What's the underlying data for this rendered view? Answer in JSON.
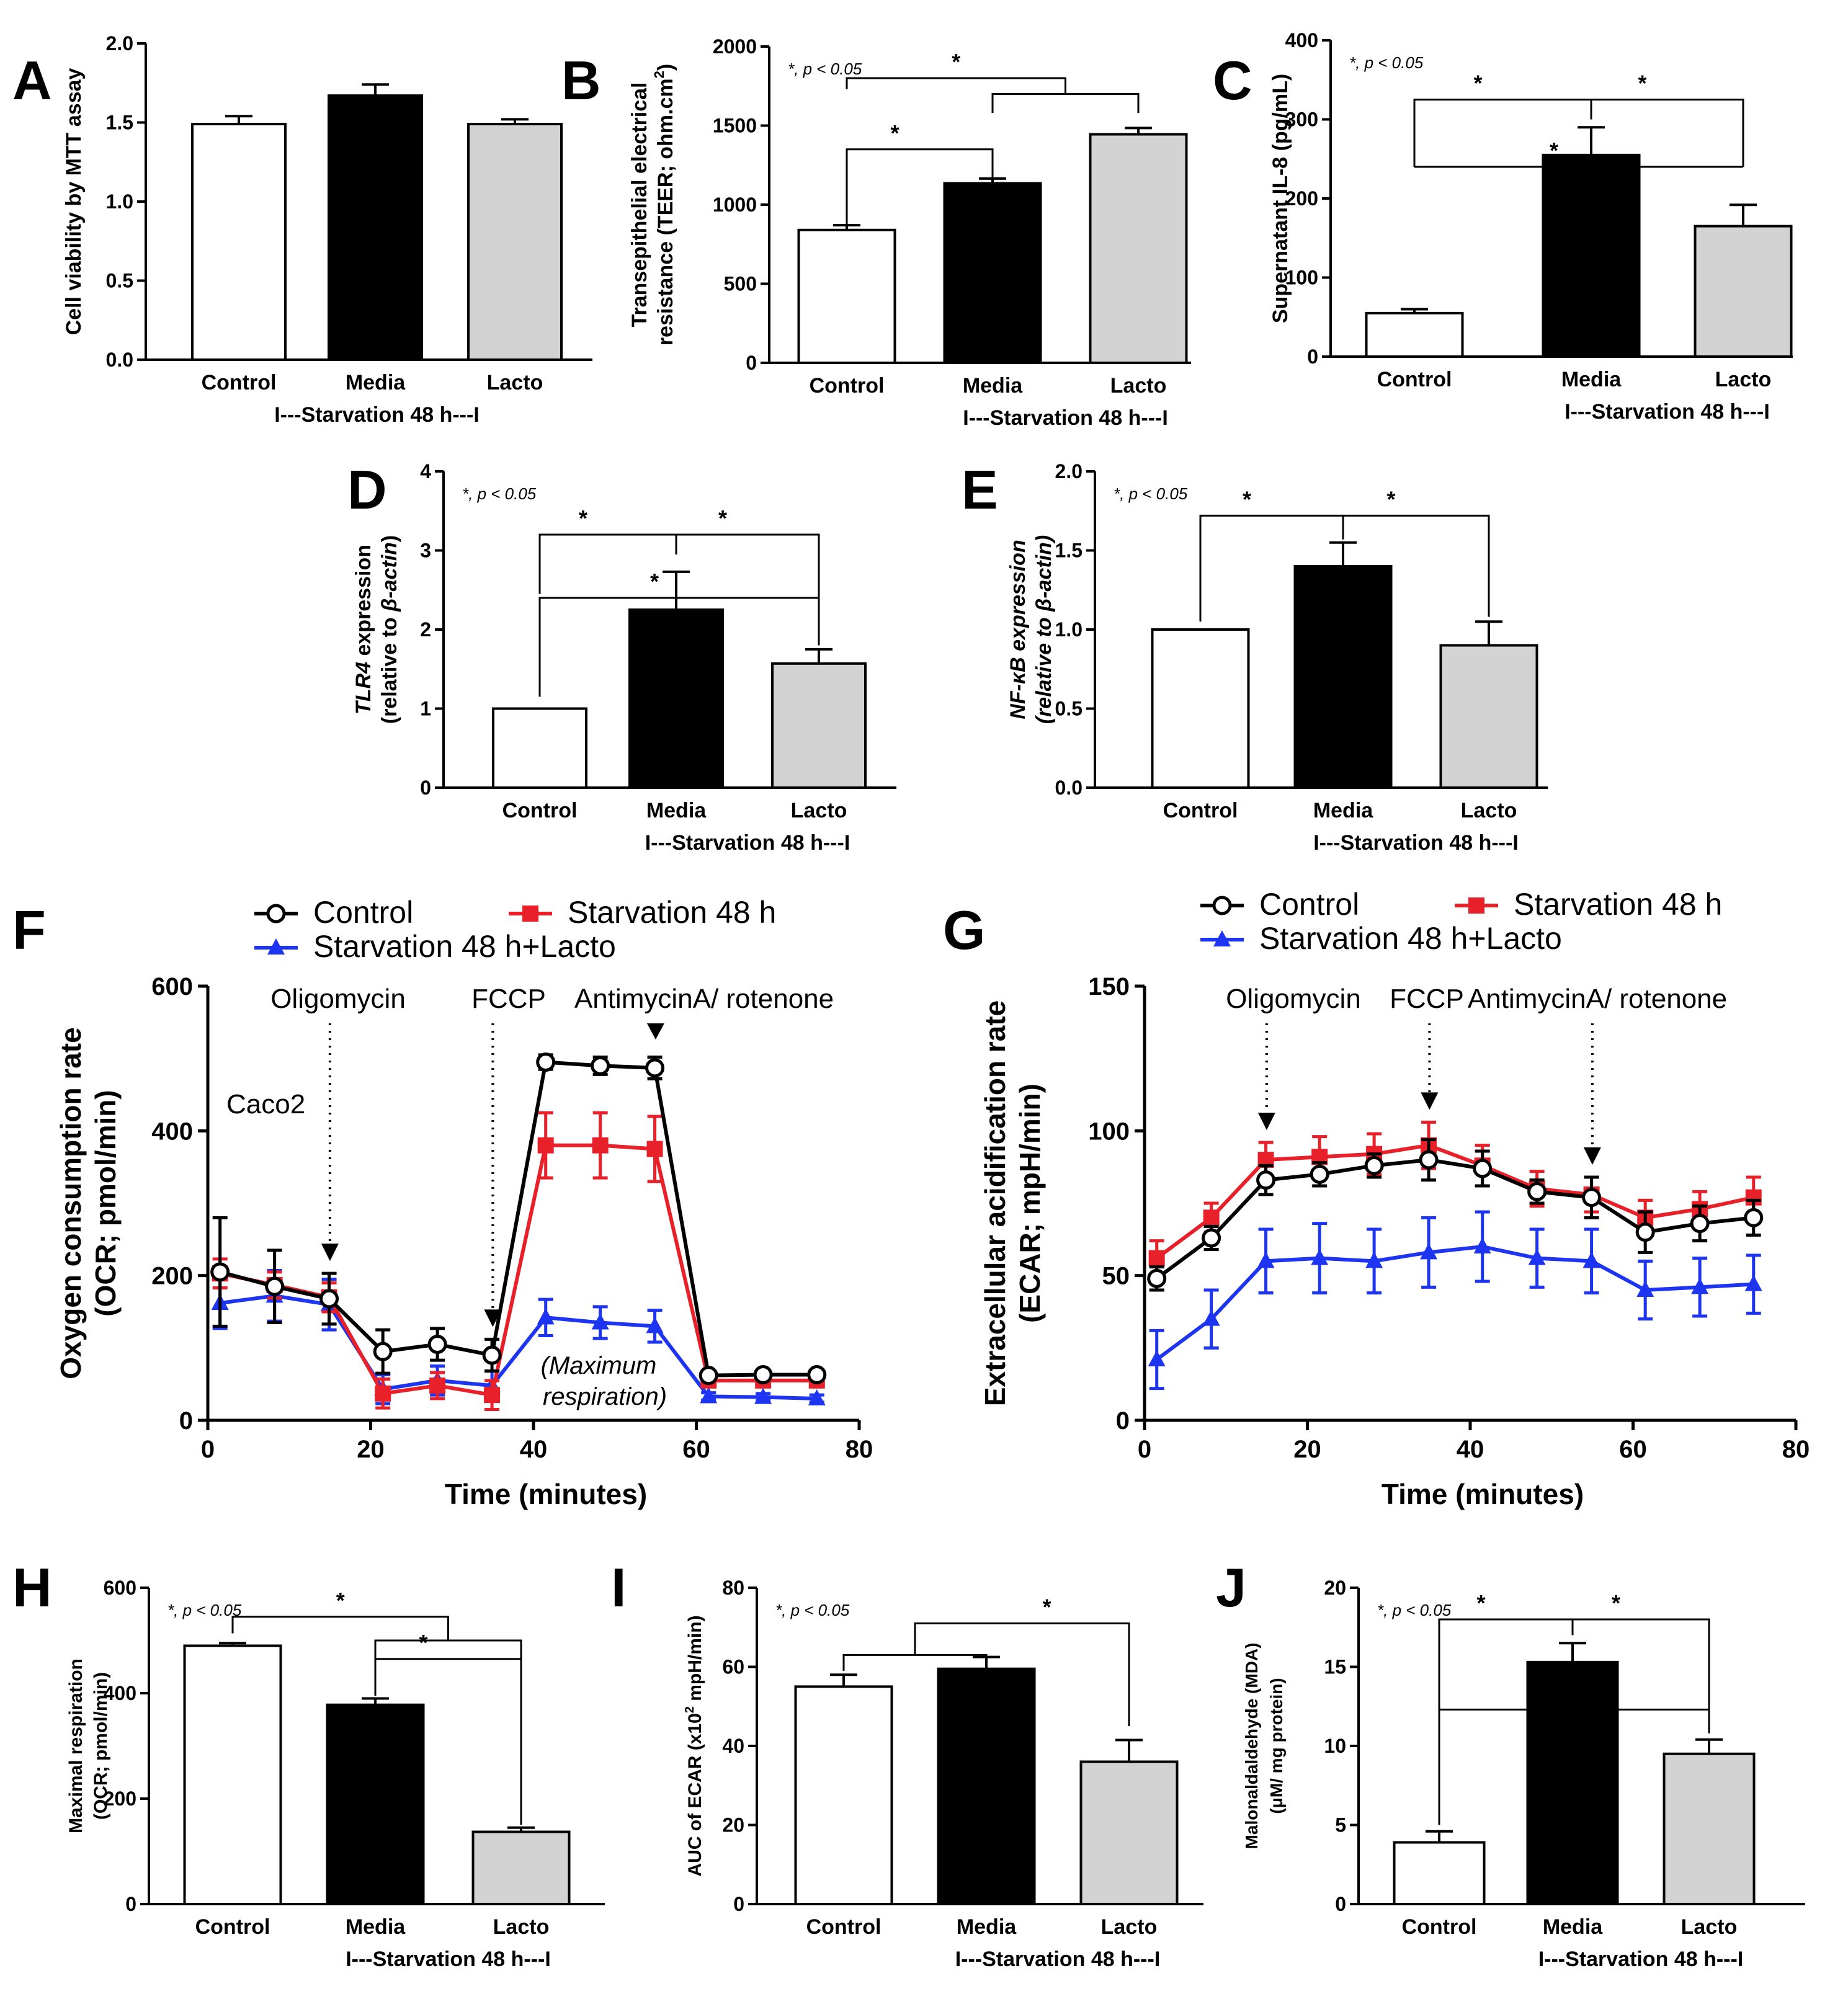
{
  "chart_data": [
    {
      "panel": "A",
      "type": "bar",
      "ylabel": "Cell viability by MTT assay",
      "categories": [
        "Control",
        "Media",
        "Lacto"
      ],
      "values": [
        1.49,
        1.67,
        1.49
      ],
      "errors": [
        0.05,
        0.07,
        0.03
      ],
      "colors": [
        "#ffffff",
        "#000000",
        "#d3d3d3"
      ],
      "ylim": [
        0,
        2.0
      ],
      "yticks": [
        "0.0",
        "0.5",
        "1.0",
        "1.5",
        "2.0"
      ],
      "group_label": "I---Starvation 48 h---I",
      "sig_note": "",
      "brackets": []
    },
    {
      "panel": "B",
      "type": "bar",
      "ylabel": "Transepithelial electrical resistance (TEER; ohm.cm²)",
      "ylabel_lines": [
        "Transepithelial electrical",
        "resistance (TEER; ohm.cm",
        "2",
        ")"
      ],
      "categories": [
        "Control",
        "Media",
        "Lacto"
      ],
      "values": [
        840,
        1135,
        1445
      ],
      "errors": [
        30,
        30,
        40
      ],
      "colors": [
        "#ffffff",
        "#000000",
        "#d3d3d3"
      ],
      "ylim": [
        0,
        2000
      ],
      "yticks": [
        "0",
        "500",
        "1000",
        "1500",
        "2000"
      ],
      "group_label": "I---Starvation 48 h---I",
      "sig_note": "*, p < 0.05",
      "brackets": [
        {
          "from": 0,
          "to": 1,
          "drop_from": 860,
          "drop_to": 1160,
          "level": 1350,
          "label": "*"
        },
        {
          "from": 0,
          "to": 2,
          "drop_from": 1700,
          "drop_to": 1700,
          "join_mid_of": [
            1,
            2
          ],
          "level": 1800,
          "label": "*"
        }
      ]
    },
    {
      "panel": "C",
      "type": "bar",
      "ylabel": "Supernatant IL-8 (pg/mL)",
      "categories": [
        "Control",
        "Media",
        "Lacto"
      ],
      "values": [
        55,
        255,
        165
      ],
      "errors": [
        5,
        35,
        27
      ],
      "colors": [
        "#ffffff",
        "#000000",
        "#d3d3d3"
      ],
      "ylim": [
        0,
        400
      ],
      "yticks": [
        "0",
        "100",
        "200",
        "300",
        "400"
      ],
      "group_label": "I---Starvation 48 h---I",
      "sig_note": "*, p < 0.05",
      "brackets": [
        {
          "from": 0,
          "to": 1,
          "drop_from": 240,
          "drop_to": 300,
          "level": 325,
          "label": "*"
        },
        {
          "from": 1,
          "to": 2,
          "drop_from": 300,
          "drop_to": 240,
          "level": 325,
          "label": "*"
        },
        {
          "from": 0,
          "to": 2,
          "drop_from": 240,
          "drop_to": 240,
          "level": 240,
          "label": "*"
        }
      ]
    },
    {
      "panel": "D",
      "type": "bar",
      "ylabel": "TLR4 expression (relative to β-actin)",
      "ylabel_lines": [
        "TLR4",
        " expression",
        "(relative to ",
        "β-actin",
        ")"
      ],
      "categories": [
        "Control",
        "Media",
        "Lacto"
      ],
      "values": [
        1.0,
        2.25,
        1.57
      ],
      "errors": [
        0,
        0.48,
        0.18
      ],
      "colors": [
        "#ffffff",
        "#000000",
        "#d3d3d3"
      ],
      "ylim": [
        0,
        4
      ],
      "yticks": [
        "0",
        "1",
        "2",
        "3",
        "4"
      ],
      "group_label": "I---Starvation 48 h---I",
      "sig_note": "*, p < 0.05",
      "brackets": [
        {
          "from": 0,
          "to": 1,
          "drop_from": 2.45,
          "drop_to": 2.95,
          "level": 3.2,
          "label": "*"
        },
        {
          "from": 1,
          "to": 2,
          "drop_from": 2.95,
          "drop_to": 1.8,
          "level": 3.2,
          "label": "*"
        },
        {
          "from": 0,
          "to": 2,
          "drop_from": 1.15,
          "drop_to": 1.85,
          "level": 2.4,
          "label": "*"
        }
      ]
    },
    {
      "panel": "E",
      "type": "bar",
      "ylabel": "NF-κB expression (relative to β-actin)",
      "ylabel_lines": [
        "NF-κB expression",
        "(relative to β-actin)"
      ],
      "categories": [
        "Control",
        "Media",
        "Lacto"
      ],
      "values": [
        1.0,
        1.4,
        0.9
      ],
      "errors": [
        0,
        0.15,
        0.15
      ],
      "colors": [
        "#ffffff",
        "#000000",
        "#d3d3d3"
      ],
      "ylim": [
        0,
        2.0
      ],
      "yticks": [
        "0.0",
        "0.5",
        "1.0",
        "1.5",
        "2.0"
      ],
      "group_label": "I---Starvation 48 h---I",
      "sig_note": "*, p < 0.05",
      "brackets": [
        {
          "from": 0,
          "to": 1,
          "drop_from": 1.05,
          "drop_to": 1.57,
          "level": 1.72,
          "label": "*"
        },
        {
          "from": 1,
          "to": 2,
          "drop_from": 1.57,
          "drop_to": 1.08,
          "level": 1.72,
          "label": "*"
        }
      ]
    },
    {
      "panel": "H",
      "type": "bar",
      "ylabel": "Maximal respiration (OCR; pmol/min)",
      "ylabel_lines": [
        "Maximal respiration",
        "(OCR; pmol/min)"
      ],
      "categories": [
        "Control",
        "Media",
        "Lacto"
      ],
      "values": [
        490,
        378,
        137
      ],
      "errors": [
        5,
        12,
        8
      ],
      "colors": [
        "#ffffff",
        "#000000",
        "#d3d3d3"
      ],
      "ylim": [
        0,
        600
      ],
      "yticks": [
        "0",
        "200",
        "400",
        "600"
      ],
      "group_label": "I---Starvation 48 h---I",
      "sig_note": "*, p < 0.05",
      "brackets": [
        {
          "from": 0,
          "to": 2,
          "drop_from": 500,
          "drop_to": 500,
          "join_mid_of": [
            1,
            2
          ],
          "level": 545,
          "label": "*"
        },
        {
          "from": 1,
          "to": 2,
          "drop_from": 395,
          "drop_to": 150,
          "level": 465,
          "label": "*"
        }
      ]
    },
    {
      "panel": "I",
      "type": "bar",
      "ylabel": "AUC of ECAR (x10² mpH/min)",
      "ylabel_lines": [
        "AUC of ECAR (x10",
        "2",
        " mpH/min)"
      ],
      "categories": [
        "Control",
        "Media",
        "Lacto"
      ],
      "values": [
        55,
        59.5,
        36
      ],
      "errors": [
        3,
        3,
        5.5
      ],
      "colors": [
        "#ffffff",
        "#000000",
        "#d3d3d3"
      ],
      "ylim": [
        0,
        80
      ],
      "yticks": [
        "0",
        "20",
        "40",
        "60",
        "80"
      ],
      "group_label": "I---Starvation 48 h---I",
      "sig_note": "*, p < 0.05",
      "brackets": [
        {
          "from": 0,
          "to": 2,
          "drop_from": 63,
          "drop_to": 45,
          "join_mid_of_left": [
            0,
            1
          ],
          "level": 71,
          "label": "*"
        }
      ]
    },
    {
      "panel": "J",
      "type": "bar",
      "ylabel": "Malonaldaldehyde (MDA) (μM/ mg protein)",
      "ylabel_lines": [
        "Malonaldaldehyde (MDA)",
        "(μM/ mg protein)"
      ],
      "categories": [
        "Control",
        "Media",
        "Lacto"
      ],
      "values": [
        3.9,
        15.3,
        9.5
      ],
      "errors": [
        0.7,
        1.2,
        0.9
      ],
      "colors": [
        "#ffffff",
        "#000000",
        "#d3d3d3"
      ],
      "ylim": [
        0,
        20
      ],
      "yticks": [
        "0",
        "5",
        "10",
        "15",
        "20"
      ],
      "group_label": "I---Starvation 48 h---I",
      "sig_note": "*, p < 0.05",
      "brackets": [
        {
          "from": 0,
          "to": 1,
          "drop_from": 5.0,
          "drop_to": 17.0,
          "level": 18.0,
          "label": "*"
        },
        {
          "from": 1,
          "to": 2,
          "drop_from": 17.0,
          "drop_to": 10.8,
          "level": 18.0,
          "label": "*"
        },
        {
          "from": 0,
          "to": 2,
          "drop_from": 12.3,
          "drop_to": 12.3,
          "level": 12.3,
          "label": "*"
        }
      ]
    },
    {
      "panel": "F",
      "type": "line",
      "xlabel": "Time (minutes)",
      "ylabel": "Oxygen consumption rate (OCR; pmol/min)",
      "ylabel_lines": [
        "Oxygen consumption rate",
        "(OCR; pmol/min)"
      ],
      "xlim": [
        0,
        80
      ],
      "ylim": [
        0,
        600
      ],
      "xticks": [
        "0",
        "20",
        "40",
        "60",
        "80"
      ],
      "yticks": [
        "0",
        "200",
        "400",
        "600"
      ],
      "x": [
        1.5,
        8.2,
        14.9,
        21.5,
        28.2,
        34.9,
        41.5,
        48.2,
        54.9,
        61.5,
        68.2,
        74.8
      ],
      "series": [
        {
          "name": "Control",
          "color": "#000000",
          "marker": "circle-open",
          "values": [
            205,
            185,
            168,
            95,
            105,
            90,
            495,
            490,
            487,
            62,
            63,
            63
          ],
          "errors": [
            75,
            50,
            35,
            30,
            22,
            22,
            10,
            12,
            15,
            5,
            5,
            5
          ]
        },
        {
          "name": "Starvation 48 h",
          "color": "#e8202a",
          "marker": "square",
          "values": [
            203,
            187,
            170,
            37,
            48,
            35,
            380,
            380,
            375,
            55,
            55,
            55
          ],
          "errors": [
            20,
            18,
            20,
            20,
            18,
            20,
            45,
            45,
            45,
            5,
            5,
            5
          ]
        },
        {
          "name": "Starvation 48 h+Lacto",
          "color": "#1d35f0",
          "marker": "triangle",
          "values": [
            162,
            172,
            160,
            43,
            55,
            48,
            142,
            135,
            130,
            33,
            32,
            30
          ],
          "errors": [
            35,
            35,
            35,
            20,
            20,
            20,
            25,
            22,
            22,
            5,
            5,
            5
          ]
        }
      ],
      "injections": [
        {
          "label": "Oligomycin",
          "x": 15
        },
        {
          "label": "FCCP",
          "x": 35
        },
        {
          "label": "AntimycinA/ rotenone",
          "x": 55
        }
      ],
      "annotations": {
        "cell": "Caco2",
        "note_line1": "(Maximum",
        "note_line2": "respiration)"
      }
    },
    {
      "panel": "G",
      "type": "line",
      "xlabel": "Time (minutes)",
      "ylabel": "Extracellular acidification rate (ECAR; mpH/min)",
      "ylabel_lines": [
        "Extracellular acidification rate",
        "(ECAR; mpH/min)"
      ],
      "xlim": [
        0,
        80
      ],
      "ylim": [
        0,
        150
      ],
      "xticks": [
        "0",
        "20",
        "40",
        "60",
        "80"
      ],
      "yticks": [
        "0",
        "50",
        "100",
        "150"
      ],
      "x": [
        1.5,
        8.2,
        14.9,
        21.5,
        28.2,
        34.9,
        41.5,
        48.2,
        54.9,
        61.5,
        68.2,
        74.8
      ],
      "series": [
        {
          "name": "Control",
          "color": "#000000",
          "marker": "circle-open",
          "values": [
            49,
            63,
            83,
            85,
            88,
            90,
            87,
            79,
            77,
            65,
            68,
            70
          ],
          "errors": [
            4,
            4,
            5,
            4,
            4,
            7,
            6,
            4,
            7,
            7,
            6,
            6
          ]
        },
        {
          "name": "Starvation 48 h",
          "color": "#e8202a",
          "marker": "square",
          "values": [
            56,
            70,
            90,
            91,
            92,
            95,
            88,
            80,
            78,
            70,
            73,
            77
          ],
          "errors": [
            6,
            5,
            6,
            7,
            7,
            8,
            7,
            6,
            6,
            6,
            6,
            7
          ]
        },
        {
          "name": "Starvation 48 h+Lacto",
          "color": "#1d35f0",
          "marker": "triangle",
          "values": [
            21,
            35,
            55,
            56,
            55,
            58,
            60,
            56,
            55,
            45,
            46,
            47
          ],
          "errors": [
            10,
            10,
            11,
            12,
            11,
            12,
            12,
            10,
            11,
            10,
            10,
            10
          ]
        }
      ],
      "injections": [
        {
          "label": "Oligomycin",
          "x": 15
        },
        {
          "label": "FCCP",
          "x": 35
        },
        {
          "label": "AntimycinA/ rotenone",
          "x": 55
        }
      ],
      "annotations": {}
    }
  ]
}
